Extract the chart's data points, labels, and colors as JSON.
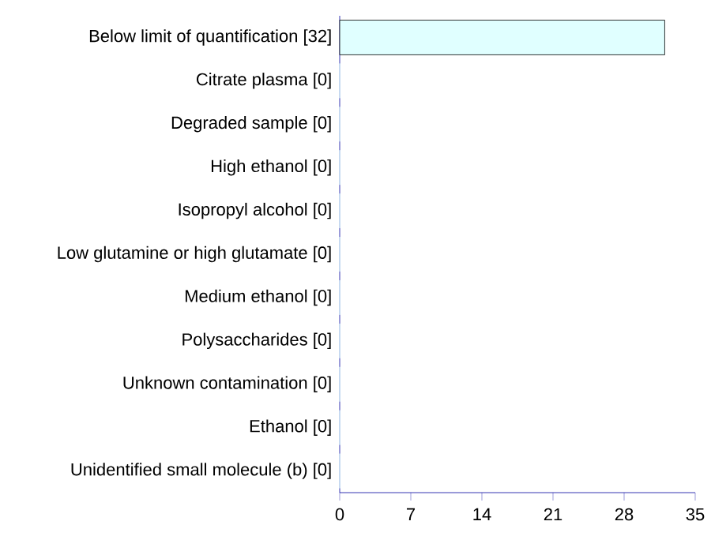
{
  "chart_data": {
    "type": "bar",
    "orientation": "horizontal",
    "categories": [
      "Below limit of quantification [32]",
      "Citrate plasma [0]",
      "Degraded sample [0]",
      "High ethanol [0]",
      "Isopropyl alcohol [0]",
      "Low glutamine or high glutamate [0]",
      "Medium ethanol [0]",
      "Polysaccharides [0]",
      "Unknown contamination [0]",
      "Ethanol [0]",
      "Unidentified small molecule (b) [0]"
    ],
    "values": [
      32,
      0,
      0,
      0,
      0,
      0,
      0,
      0,
      0,
      0,
      0
    ],
    "color": "#e0ffff",
    "xlim": [
      0,
      35
    ],
    "xticks": [
      0,
      7,
      14,
      21,
      28,
      35
    ]
  }
}
